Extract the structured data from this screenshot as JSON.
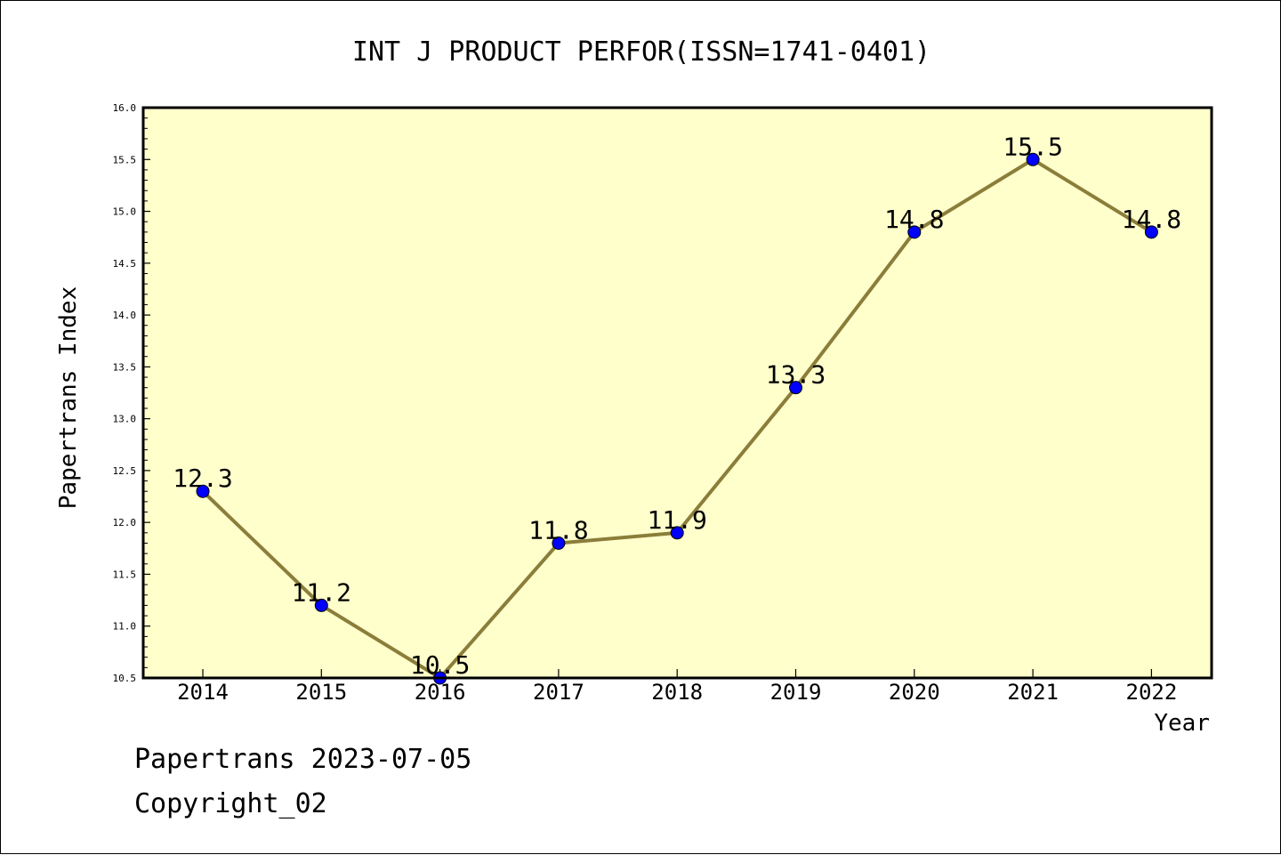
{
  "colors": {
    "background": "#ffffff",
    "plot_background": "#ffffcc",
    "line": "#8b7d3a",
    "marker": "#0000ff",
    "axis": "#000000"
  },
  "chart_data": {
    "type": "line",
    "title": "INT J PRODUCT PERFOR(ISSN=1741-0401)",
    "xlabel": "Year",
    "ylabel": "Papertrans Index",
    "categories": [
      "2014",
      "2015",
      "2016",
      "2017",
      "2018",
      "2019",
      "2020",
      "2021",
      "2022"
    ],
    "series": [
      {
        "values": [
          12.3,
          11.2,
          10.5,
          11.8,
          11.9,
          13.3,
          14.8,
          15.5,
          14.8
        ]
      }
    ],
    "data_labels": [
      "12.3",
      "11.2",
      "10.5",
      "11.8",
      "11.9",
      "13.3",
      "14.8",
      "15.5",
      "14.8"
    ],
    "ylim": [
      10.5,
      16.0
    ],
    "yticks": [
      "10.5",
      "11.0",
      "11.5",
      "12.0",
      "12.5",
      "13.0",
      "13.5",
      "14.0",
      "14.5",
      "15.0",
      "15.5",
      "16.0"
    ],
    "grid": false,
    "legend": "none"
  },
  "footer": {
    "line1": "Papertrans 2023-07-05",
    "line2": "Copyright_02"
  }
}
